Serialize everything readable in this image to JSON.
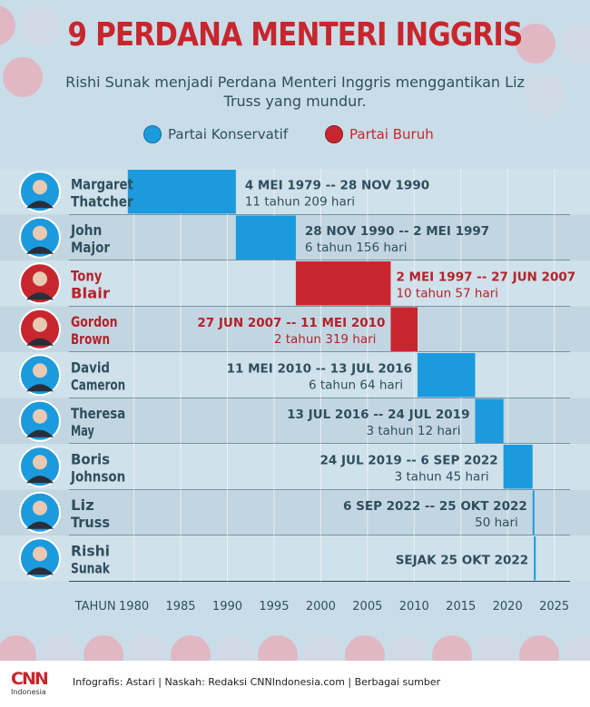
{
  "title": "9 PERDANA MENTERI INGGRIS",
  "subtitle": "Rishi Sunak menjadi Perdana Menteri Inggris menggantikan Liz Truss yang mundur.",
  "legend": [
    {
      "label": "Partai Konservatif",
      "color": "#1b9bdd"
    },
    {
      "label": "Partai Buruh",
      "color": "#c8262e"
    }
  ],
  "colors": {
    "konservatif": "#1b9bdd",
    "buruh": "#c8262e",
    "text_dark": "#2f4f5e",
    "background": "#c9dde8"
  },
  "chart_data": {
    "type": "bar",
    "orientation": "horizontal-timeline",
    "xlabel_prefix": "TAHUN",
    "xlim": [
      1978,
      2026
    ],
    "x_ticks": [
      1980,
      1985,
      1990,
      1995,
      2000,
      2005,
      2010,
      2015,
      2020,
      2025
    ],
    "grid": true,
    "legend_position": "top",
    "series": [
      {
        "name_lines": [
          "Margaret",
          "Thatcher"
        ],
        "party": "konservatif",
        "start": 1979.34,
        "end": 1990.91,
        "period": "4 MEI 1979 -- 28 NOV 1990",
        "duration": "11 tahun 209 hari"
      },
      {
        "name_lines": [
          "John",
          "Major"
        ],
        "party": "konservatif",
        "start": 1990.91,
        "end": 1997.33,
        "period": "28 NOV 1990 -- 2 MEI 1997",
        "duration": "6 tahun 156 hari"
      },
      {
        "name_lines": [
          "Tony",
          "Blair"
        ],
        "party": "buruh",
        "start": 1997.33,
        "end": 2007.49,
        "period": "2 MEI 1997 -- 27 JUN 2007",
        "duration": "10 tahun 57 hari"
      },
      {
        "name_lines": [
          "Gordon",
          "Brown"
        ],
        "party": "buruh",
        "start": 2007.49,
        "end": 2010.36,
        "period": "27 JUN 2007 -- 11 MEI 2010",
        "duration": "2 tahun 319 hari"
      },
      {
        "name_lines": [
          "David",
          "Cameron"
        ],
        "party": "konservatif",
        "start": 2010.36,
        "end": 2016.53,
        "period": "11 MEI 2010 -- 13 JUL 2016",
        "duration": "6 tahun 64 hari"
      },
      {
        "name_lines": [
          "Theresa",
          "May"
        ],
        "party": "konservatif",
        "start": 2016.53,
        "end": 2019.56,
        "period": "13 JUL 2016 -- 24 JUL 2019",
        "duration": "3 tahun 12 hari"
      },
      {
        "name_lines": [
          "Boris",
          "Johnson"
        ],
        "party": "konservatif",
        "start": 2019.56,
        "end": 2022.68,
        "period": "24 JUL 2019 -- 6 SEP 2022",
        "duration": "3 tahun 45 hari"
      },
      {
        "name_lines": [
          "Liz",
          "Truss"
        ],
        "party": "konservatif",
        "start": 2022.68,
        "end": 2022.82,
        "period": "6 SEP 2022 -- 25 OKT 2022",
        "duration": "50 hari"
      },
      {
        "name_lines": [
          "Rishi",
          "Sunak"
        ],
        "party": "konservatif",
        "start": 2022.82,
        "end": 2023.0,
        "period": "SEJAK 25 OKT 2022",
        "duration": ""
      }
    ]
  },
  "footer": {
    "logo_main": "CNN",
    "logo_sub": "Indonesia",
    "credits": "Infografis: Astari | Naskah: Redaksi CNNIndonesia.com | Berbagai sumber"
  }
}
